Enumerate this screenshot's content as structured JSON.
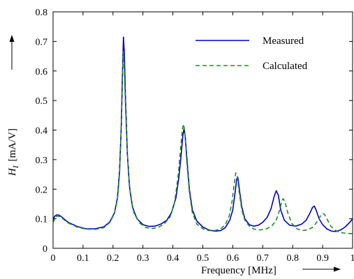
{
  "chart_data": {
    "type": "line",
    "xlabel": "Frequency [MHz]",
    "ylabel_main": "H",
    "ylabel_sub": "I",
    "ylabel_unit": "[mA/V]",
    "xlim": [
      0,
      1
    ],
    "ylim": [
      0,
      0.8
    ],
    "xticks": [
      "0",
      "0.1",
      "0.2",
      "0.3",
      "0.4",
      "0.5",
      "0.6",
      "0.7",
      "0.8",
      "0.9",
      "1"
    ],
    "yticks": [
      "0",
      "0.1",
      "0.2",
      "0.3",
      "0.4",
      "0.5",
      "0.6",
      "0.7",
      "0.8"
    ],
    "grid": false,
    "legend_position": "top-right",
    "series": [
      {
        "name": "Measured",
        "color": "#0000cc",
        "style": "solid",
        "points": [
          [
            0,
            0.095
          ],
          [
            0.005,
            0.108
          ],
          [
            0.012,
            0.113
          ],
          [
            0.02,
            0.112
          ],
          [
            0.03,
            0.105
          ],
          [
            0.05,
            0.088
          ],
          [
            0.08,
            0.074
          ],
          [
            0.11,
            0.066
          ],
          [
            0.14,
            0.066
          ],
          [
            0.17,
            0.073
          ],
          [
            0.19,
            0.09
          ],
          [
            0.205,
            0.12
          ],
          [
            0.215,
            0.17
          ],
          [
            0.222,
            0.26
          ],
          [
            0.228,
            0.42
          ],
          [
            0.232,
            0.6
          ],
          [
            0.235,
            0.715
          ],
          [
            0.238,
            0.66
          ],
          [
            0.242,
            0.5
          ],
          [
            0.248,
            0.32
          ],
          [
            0.255,
            0.21
          ],
          [
            0.265,
            0.14
          ],
          [
            0.28,
            0.1
          ],
          [
            0.3,
            0.08
          ],
          [
            0.32,
            0.074
          ],
          [
            0.34,
            0.075
          ],
          [
            0.36,
            0.082
          ],
          [
            0.38,
            0.095
          ],
          [
            0.395,
            0.12
          ],
          [
            0.41,
            0.17
          ],
          [
            0.42,
            0.24
          ],
          [
            0.428,
            0.32
          ],
          [
            0.433,
            0.38
          ],
          [
            0.437,
            0.405
          ],
          [
            0.441,
            0.38
          ],
          [
            0.447,
            0.3
          ],
          [
            0.455,
            0.2
          ],
          [
            0.465,
            0.13
          ],
          [
            0.48,
            0.092
          ],
          [
            0.5,
            0.072
          ],
          [
            0.52,
            0.062
          ],
          [
            0.54,
            0.058
          ],
          [
            0.56,
            0.06
          ],
          [
            0.575,
            0.07
          ],
          [
            0.59,
            0.095
          ],
          [
            0.6,
            0.13
          ],
          [
            0.608,
            0.19
          ],
          [
            0.613,
            0.235
          ],
          [
            0.617,
            0.24
          ],
          [
            0.622,
            0.2
          ],
          [
            0.63,
            0.14
          ],
          [
            0.64,
            0.1
          ],
          [
            0.655,
            0.08
          ],
          [
            0.67,
            0.075
          ],
          [
            0.685,
            0.078
          ],
          [
            0.7,
            0.088
          ],
          [
            0.715,
            0.105
          ],
          [
            0.728,
            0.135
          ],
          [
            0.738,
            0.175
          ],
          [
            0.745,
            0.195
          ],
          [
            0.752,
            0.18
          ],
          [
            0.76,
            0.13
          ],
          [
            0.772,
            0.095
          ],
          [
            0.79,
            0.078
          ],
          [
            0.81,
            0.075
          ],
          [
            0.83,
            0.082
          ],
          [
            0.845,
            0.095
          ],
          [
            0.858,
            0.12
          ],
          [
            0.866,
            0.138
          ],
          [
            0.872,
            0.143
          ],
          [
            0.878,
            0.13
          ],
          [
            0.888,
            0.1
          ],
          [
            0.9,
            0.08
          ],
          [
            0.915,
            0.065
          ],
          [
            0.93,
            0.058
          ],
          [
            0.945,
            0.057
          ],
          [
            0.96,
            0.062
          ],
          [
            0.975,
            0.072
          ],
          [
            0.99,
            0.087
          ],
          [
            1.0,
            0.1
          ]
        ]
      },
      {
        "name": "Calculated",
        "color": "#228b22",
        "style": "dashed",
        "points": [
          [
            0,
            0.085
          ],
          [
            0.005,
            0.098
          ],
          [
            0.012,
            0.108
          ],
          [
            0.02,
            0.108
          ],
          [
            0.03,
            0.102
          ],
          [
            0.05,
            0.086
          ],
          [
            0.08,
            0.072
          ],
          [
            0.11,
            0.065
          ],
          [
            0.14,
            0.064
          ],
          [
            0.17,
            0.07
          ],
          [
            0.19,
            0.088
          ],
          [
            0.205,
            0.118
          ],
          [
            0.215,
            0.165
          ],
          [
            0.222,
            0.25
          ],
          [
            0.227,
            0.4
          ],
          [
            0.231,
            0.58
          ],
          [
            0.234,
            0.665
          ],
          [
            0.238,
            0.6
          ],
          [
            0.243,
            0.45
          ],
          [
            0.25,
            0.28
          ],
          [
            0.258,
            0.18
          ],
          [
            0.27,
            0.12
          ],
          [
            0.29,
            0.085
          ],
          [
            0.31,
            0.07
          ],
          [
            0.33,
            0.067
          ],
          [
            0.35,
            0.07
          ],
          [
            0.37,
            0.082
          ],
          [
            0.39,
            0.105
          ],
          [
            0.405,
            0.15
          ],
          [
            0.417,
            0.24
          ],
          [
            0.426,
            0.34
          ],
          [
            0.432,
            0.405
          ],
          [
            0.436,
            0.42
          ],
          [
            0.44,
            0.39
          ],
          [
            0.446,
            0.3
          ],
          [
            0.455,
            0.19
          ],
          [
            0.465,
            0.12
          ],
          [
            0.48,
            0.082
          ],
          [
            0.5,
            0.066
          ],
          [
            0.52,
            0.06
          ],
          [
            0.54,
            0.06
          ],
          [
            0.56,
            0.066
          ],
          [
            0.575,
            0.08
          ],
          [
            0.588,
            0.11
          ],
          [
            0.598,
            0.16
          ],
          [
            0.605,
            0.22
          ],
          [
            0.61,
            0.255
          ],
          [
            0.614,
            0.25
          ],
          [
            0.62,
            0.2
          ],
          [
            0.63,
            0.13
          ],
          [
            0.64,
            0.095
          ],
          [
            0.655,
            0.075
          ],
          [
            0.67,
            0.065
          ],
          [
            0.69,
            0.062
          ],
          [
            0.71,
            0.065
          ],
          [
            0.73,
            0.075
          ],
          [
            0.745,
            0.095
          ],
          [
            0.755,
            0.125
          ],
          [
            0.763,
            0.155
          ],
          [
            0.768,
            0.168
          ],
          [
            0.774,
            0.158
          ],
          [
            0.785,
            0.115
          ],
          [
            0.797,
            0.085
          ],
          [
            0.81,
            0.068
          ],
          [
            0.83,
            0.06
          ],
          [
            0.85,
            0.062
          ],
          [
            0.868,
            0.072
          ],
          [
            0.88,
            0.088
          ],
          [
            0.892,
            0.108
          ],
          [
            0.9,
            0.118
          ],
          [
            0.906,
            0.115
          ],
          [
            0.915,
            0.098
          ],
          [
            0.928,
            0.074
          ],
          [
            0.94,
            0.062
          ],
          [
            0.955,
            0.055
          ],
          [
            0.97,
            0.052
          ],
          [
            0.985,
            0.05
          ],
          [
            1.0,
            0.05
          ]
        ]
      }
    ]
  }
}
